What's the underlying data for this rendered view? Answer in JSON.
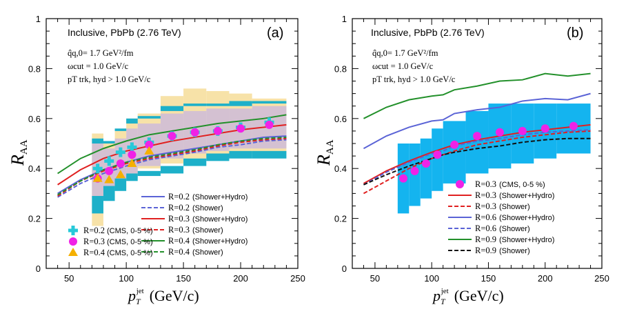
{
  "chart_data": [
    {
      "type": "line",
      "panel_label": "(a)",
      "title": "Inclusive, PbPb (2.76 TeV)",
      "params": [
        "q̂q,0= 1.7 GeV²/fm",
        "ωcut = 1.0 GeV/c",
        "pT trk, hyd > 1.0 GeV/c"
      ],
      "ylabel": "R",
      "ylabel_sub": "AA",
      "xlabel": "p",
      "xlabel_sub": "T",
      "xlabel_sup": "jet",
      "xlabel_units": "(GeV/c)",
      "xlim": [
        30,
        250
      ],
      "ylim": [
        0,
        1
      ],
      "x_ticks": [
        50,
        100,
        150,
        200,
        250
      ],
      "y_ticks": [
        0,
        0.2,
        0.4,
        0.6,
        0.8,
        1
      ],
      "x": [
        40,
        60,
        80,
        100,
        120,
        140,
        160,
        180,
        200,
        220,
        240
      ],
      "series": [
        {
          "name": "R=0.2 (Shower+Hydro)",
          "r": "R=0.2",
          "desc": "(Shower+Hydro)",
          "color": "#5a63d6",
          "dash": false,
          "values": [
            0.3,
            0.355,
            0.395,
            0.425,
            0.45,
            0.465,
            0.48,
            0.495,
            0.51,
            0.525,
            0.53
          ]
        },
        {
          "name": "R=0.2 (Shower)",
          "r": "R=0.2",
          "desc": "(Shower)",
          "color": "#5a63d6",
          "dash": true,
          "values": [
            0.285,
            0.34,
            0.38,
            0.41,
            0.435,
            0.45,
            0.465,
            0.485,
            0.495,
            0.51,
            0.515
          ]
        },
        {
          "name": "R=0.3 (Shower+Hydro)",
          "r": "R=0.3",
          "desc": "(Shower+Hydro)",
          "color": "#e02020",
          "dash": false,
          "values": [
            0.335,
            0.395,
            0.44,
            0.47,
            0.49,
            0.51,
            0.525,
            0.54,
            0.555,
            0.565,
            0.575
          ]
        },
        {
          "name": "R=0.3 (Shower)",
          "r": "R=0.3",
          "desc": "(Shower)",
          "color": "#e02020",
          "dash": true,
          "values": [
            0.29,
            0.35,
            0.39,
            0.42,
            0.44,
            0.455,
            0.47,
            0.49,
            0.505,
            0.515,
            0.52
          ]
        },
        {
          "name": "R=0.4 (Shower+Hydro)",
          "r": "R=0.4",
          "desc": "(Shower+Hydro)",
          "color": "#22902a",
          "dash": false,
          "values": [
            0.38,
            0.44,
            0.48,
            0.51,
            0.535,
            0.55,
            0.565,
            0.58,
            0.59,
            0.6,
            0.615
          ]
        },
        {
          "name": "R=0.4 (Shower)",
          "r": "R=0.4",
          "desc": "(Shower)",
          "color": "#22902a",
          "dash": true,
          "values": [
            0.295,
            0.35,
            0.395,
            0.425,
            0.445,
            0.46,
            0.475,
            0.495,
            0.51,
            0.52,
            0.525
          ]
        }
      ],
      "cms": [
        {
          "name": "R=0.2",
          "desc": "(CMS, 0-5 %)",
          "marker": "cross",
          "color": "#27c9d9",
          "x": [
            75,
            85,
            95,
            105,
            120,
            140,
            160,
            180,
            200,
            225
          ],
          "y": [
            0.4,
            0.43,
            0.465,
            0.485,
            0.505,
            0.53,
            0.545,
            0.55,
            0.565,
            0.585
          ]
        },
        {
          "name": "R=0.3",
          "desc": "(CMS, 0-5 %)",
          "marker": "circle",
          "color": "#f022e6",
          "x": [
            75,
            85,
            95,
            105,
            120,
            140,
            160,
            180,
            200,
            225
          ],
          "y": [
            0.36,
            0.39,
            0.42,
            0.455,
            0.495,
            0.53,
            0.545,
            0.55,
            0.56,
            0.575
          ]
        },
        {
          "name": "R=0.4",
          "desc": "(CMS, 0-5 %)",
          "marker": "triangle",
          "color": "#f5b000",
          "x": [
            75,
            85,
            95,
            105,
            120
          ],
          "y": [
            0.36,
            0.355,
            0.375,
            0.42,
            0.47
          ]
        }
      ],
      "bands": [
        {
          "color": "#f7e2a8",
          "bins": [
            [
              70,
              80,
              0.17,
              0.54
            ],
            [
              80,
              90,
              0.28,
              0.5
            ],
            [
              90,
              100,
              0.32,
              0.55
            ],
            [
              100,
              110,
              0.36,
              0.6
            ],
            [
              110,
              130,
              0.4,
              0.62
            ],
            [
              130,
              150,
              0.42,
              0.69
            ],
            [
              150,
              170,
              0.44,
              0.72
            ],
            [
              170,
              190,
              0.45,
              0.71
            ],
            [
              190,
              210,
              0.46,
              0.7
            ],
            [
              210,
              240,
              0.46,
              0.68
            ]
          ]
        },
        {
          "color": "#c8b6e0",
          "bins": [
            [
              70,
              80,
              0.28,
              0.5
            ],
            [
              80,
              90,
              0.31,
              0.48
            ],
            [
              90,
              100,
              0.35,
              0.52
            ],
            [
              100,
              110,
              0.38,
              0.56
            ],
            [
              110,
              130,
              0.41,
              0.58
            ],
            [
              130,
              150,
              0.44,
              0.62
            ],
            [
              150,
              170,
              0.46,
              0.63
            ],
            [
              170,
              190,
              0.47,
              0.64
            ],
            [
              190,
              210,
              0.48,
              0.64
            ],
            [
              210,
              240,
              0.48,
              0.65
            ]
          ]
        },
        {
          "color": "#1db0c9",
          "bins": [
            [
              70,
              80,
              0.22,
              0.29
            ],
            [
              80,
              90,
              0.27,
              0.33
            ],
            [
              90,
              100,
              0.31,
              0.36
            ],
            [
              100,
              110,
              0.35,
              0.38
            ],
            [
              110,
              130,
              0.37,
              0.39
            ],
            [
              130,
              150,
              0.38,
              0.41
            ],
            [
              150,
              170,
              0.41,
              0.44
            ],
            [
              170,
              190,
              0.43,
              0.46
            ],
            [
              190,
              210,
              0.44,
              0.47
            ],
            [
              210,
              240,
              0.44,
              0.47
            ]
          ]
        },
        {
          "color": "#1db0c9",
          "bins": [
            [
              70,
              80,
              0.5,
              0.52
            ],
            [
              80,
              90,
              0.5,
              0.51
            ],
            [
              90,
              100,
              0.55,
              0.56
            ],
            [
              100,
              110,
              0.58,
              0.6
            ],
            [
              110,
              130,
              0.6,
              0.61
            ],
            [
              130,
              150,
              0.63,
              0.65
            ],
            [
              150,
              170,
              0.65,
              0.66
            ],
            [
              170,
              190,
              0.65,
              0.66
            ],
            [
              190,
              210,
              0.65,
              0.67
            ],
            [
              210,
              240,
              0.66,
              0.67
            ]
          ]
        }
      ],
      "legend_order": [
        "series:0",
        "series:1",
        "series:2",
        "series:3",
        "series:4",
        "series:5"
      ]
    },
    {
      "type": "line",
      "panel_label": "(b)",
      "title": "Inclusive, PbPb (2.76 TeV)",
      "params": [
        "q̂q,0= 1.7 GeV²/fm",
        "ωcut = 1.0 GeV/c",
        "pT trk, hyd > 1.0 GeV/c"
      ],
      "ylabel": "R",
      "ylabel_sub": "AA",
      "xlabel": "p",
      "xlabel_sub": "T",
      "xlabel_sup": "jet",
      "xlabel_units": "(GeV/c)",
      "xlim": [
        30,
        250
      ],
      "ylim": [
        0,
        1
      ],
      "x_ticks": [
        50,
        100,
        150,
        200,
        250
      ],
      "y_ticks": [
        0,
        0.2,
        0.4,
        0.6,
        0.8,
        1
      ],
      "x": [
        40,
        60,
        80,
        100,
        110,
        120,
        140,
        160,
        180,
        200,
        220,
        240
      ],
      "series": [
        {
          "name": "R=0.3 (Shower+Hydro)",
          "r": "R=0.3",
          "desc": "(Shower+Hydro)",
          "color": "#e02020",
          "dash": false,
          "values": [
            0.34,
            0.39,
            0.43,
            0.465,
            0.48,
            0.495,
            0.515,
            0.53,
            0.545,
            0.555,
            0.565,
            0.575
          ]
        },
        {
          "name": "R=0.3 (Shower)",
          "r": "R=0.3",
          "desc": "(Shower)",
          "color": "#e02020",
          "dash": true,
          "values": [
            0.3,
            0.35,
            0.4,
            0.44,
            0.455,
            0.47,
            0.495,
            0.51,
            0.525,
            0.535,
            0.545,
            0.55
          ]
        },
        {
          "name": "R=0.6 (Shower+Hydro)",
          "r": "R=0.6",
          "desc": "(Shower+Hydro)",
          "color": "#5a63d6",
          "dash": false,
          "values": [
            0.48,
            0.53,
            0.565,
            0.59,
            0.595,
            0.62,
            0.635,
            0.645,
            0.67,
            0.68,
            0.675,
            0.7
          ]
        },
        {
          "name": "R=0.6 (Shower)",
          "r": "R=0.6",
          "desc": "(Shower)",
          "color": "#5a63d6",
          "dash": true,
          "values": [
            0.335,
            0.385,
            0.425,
            0.46,
            0.47,
            0.49,
            0.51,
            0.52,
            0.535,
            0.545,
            0.55,
            0.555
          ]
        },
        {
          "name": "R=0.9 (Shower+Hydro)",
          "r": "R=0.9",
          "desc": "(Shower+Hydro)",
          "color": "#22902a",
          "dash": false,
          "values": [
            0.6,
            0.645,
            0.675,
            0.69,
            0.695,
            0.715,
            0.73,
            0.75,
            0.755,
            0.78,
            0.77,
            0.78
          ]
        },
        {
          "name": "R=0.9 (Shower)",
          "r": "R=0.9",
          "desc": "(Shower)",
          "color": "#111111",
          "dash": true,
          "values": [
            0.335,
            0.375,
            0.41,
            0.44,
            0.455,
            0.465,
            0.48,
            0.49,
            0.505,
            0.515,
            0.52,
            0.52
          ]
        }
      ],
      "cms": [
        {
          "name": "R=0.3",
          "desc": "(CMS, 0-5 %)",
          "marker": "circle",
          "color": "#f022e6",
          "x": [
            75,
            85,
            95,
            105,
            120,
            140,
            160,
            180,
            200,
            225
          ],
          "y": [
            0.36,
            0.39,
            0.42,
            0.455,
            0.495,
            0.53,
            0.545,
            0.55,
            0.56,
            0.57
          ]
        }
      ],
      "bands": [
        {
          "color": "#14b4ef",
          "bins": [
            [
              70,
              80,
              0.22,
              0.5
            ],
            [
              80,
              90,
              0.25,
              0.5
            ],
            [
              90,
              100,
              0.28,
              0.52
            ],
            [
              100,
              110,
              0.31,
              0.56
            ],
            [
              110,
              130,
              0.34,
              0.59
            ],
            [
              130,
              150,
              0.38,
              0.63
            ],
            [
              150,
              170,
              0.4,
              0.66
            ],
            [
              170,
              190,
              0.42,
              0.66
            ],
            [
              190,
              210,
              0.44,
              0.66
            ],
            [
              210,
              240,
              0.46,
              0.66
            ]
          ]
        }
      ],
      "legend_order": [
        "cms:0",
        "series:0",
        "series:1",
        "series:2",
        "series:3",
        "series:4",
        "series:5"
      ]
    }
  ]
}
